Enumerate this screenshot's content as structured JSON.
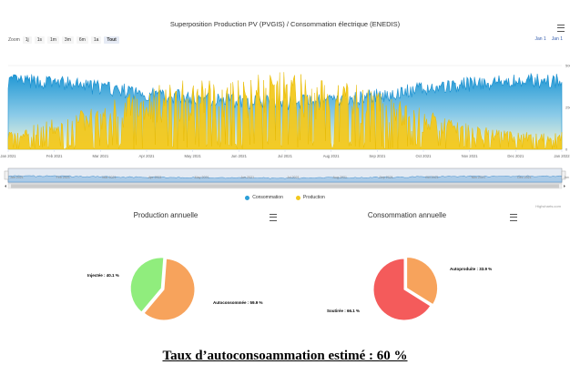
{
  "header": {
    "title": "Superposition Production PV (PVGIS) / Consommation électrique (ENEDIS)"
  },
  "zoom": {
    "label": "Zoom",
    "buttons": [
      "1j",
      "1s",
      "1m",
      "3m",
      "6m",
      "1a",
      "Tout"
    ],
    "active": "Tout"
  },
  "date_range": {
    "from": "Jan 1",
    "to": "Jan 1"
  },
  "legend": {
    "consumption": "Consommation",
    "production": "Production"
  },
  "credit": "Highcharts.com",
  "colors": {
    "consumption": "#2b9fd8",
    "production": "#f2c81e",
    "injected": "#90ed7d",
    "autoconsumed": "#f7a35c",
    "autoproduced": "#f7a35c",
    "supplied": "#f45b5b"
  },
  "summary": "Taux d’autoconsoammation estimé : 60 %",
  "chart_data": [
    {
      "type": "area",
      "title": "Superposition Production PV (PVGIS) / Consommation électrique (ENEDIS)",
      "x_ticks": [
        "Jan 2021",
        "Feb 2021",
        "Mar 2021",
        "Apr 2021",
        "May 2021",
        "Jun 2021",
        "Jul 2021",
        "Aug 2021",
        "Sep 2021",
        "Oct 2021",
        "Nov 2021",
        "Dec 2021",
        "Jan 2022"
      ],
      "y_ticks": [
        "0",
        "2500",
        "5000"
      ],
      "ylim": [
        0,
        5000
      ],
      "series": [
        {
          "name": "Consommation",
          "monthly_level": [
            3900,
            3800,
            3500,
            3100,
            2900,
            2700,
            2600,
            2700,
            3000,
            3400,
            3700,
            3900,
            3900
          ]
        },
        {
          "name": "Production",
          "monthly_level": [
            800,
            1200,
            1800,
            2500,
            2800,
            3000,
            3100,
            2900,
            2300,
            1600,
            1000,
            700,
            700
          ]
        }
      ]
    },
    {
      "type": "pie",
      "title": "Production annuelle",
      "slices": [
        {
          "label": "Injectée : 40.1 %",
          "value": 40.1
        },
        {
          "label": "Autoconsommée : 59.9 %",
          "value": 59.9
        }
      ]
    },
    {
      "type": "pie",
      "title": "Consommation annuelle",
      "slices": [
        {
          "label": "Autoproduite : 33.9 %",
          "value": 33.9
        },
        {
          "label": "Soutirée : 66.1 %",
          "value": 66.1
        }
      ]
    }
  ]
}
